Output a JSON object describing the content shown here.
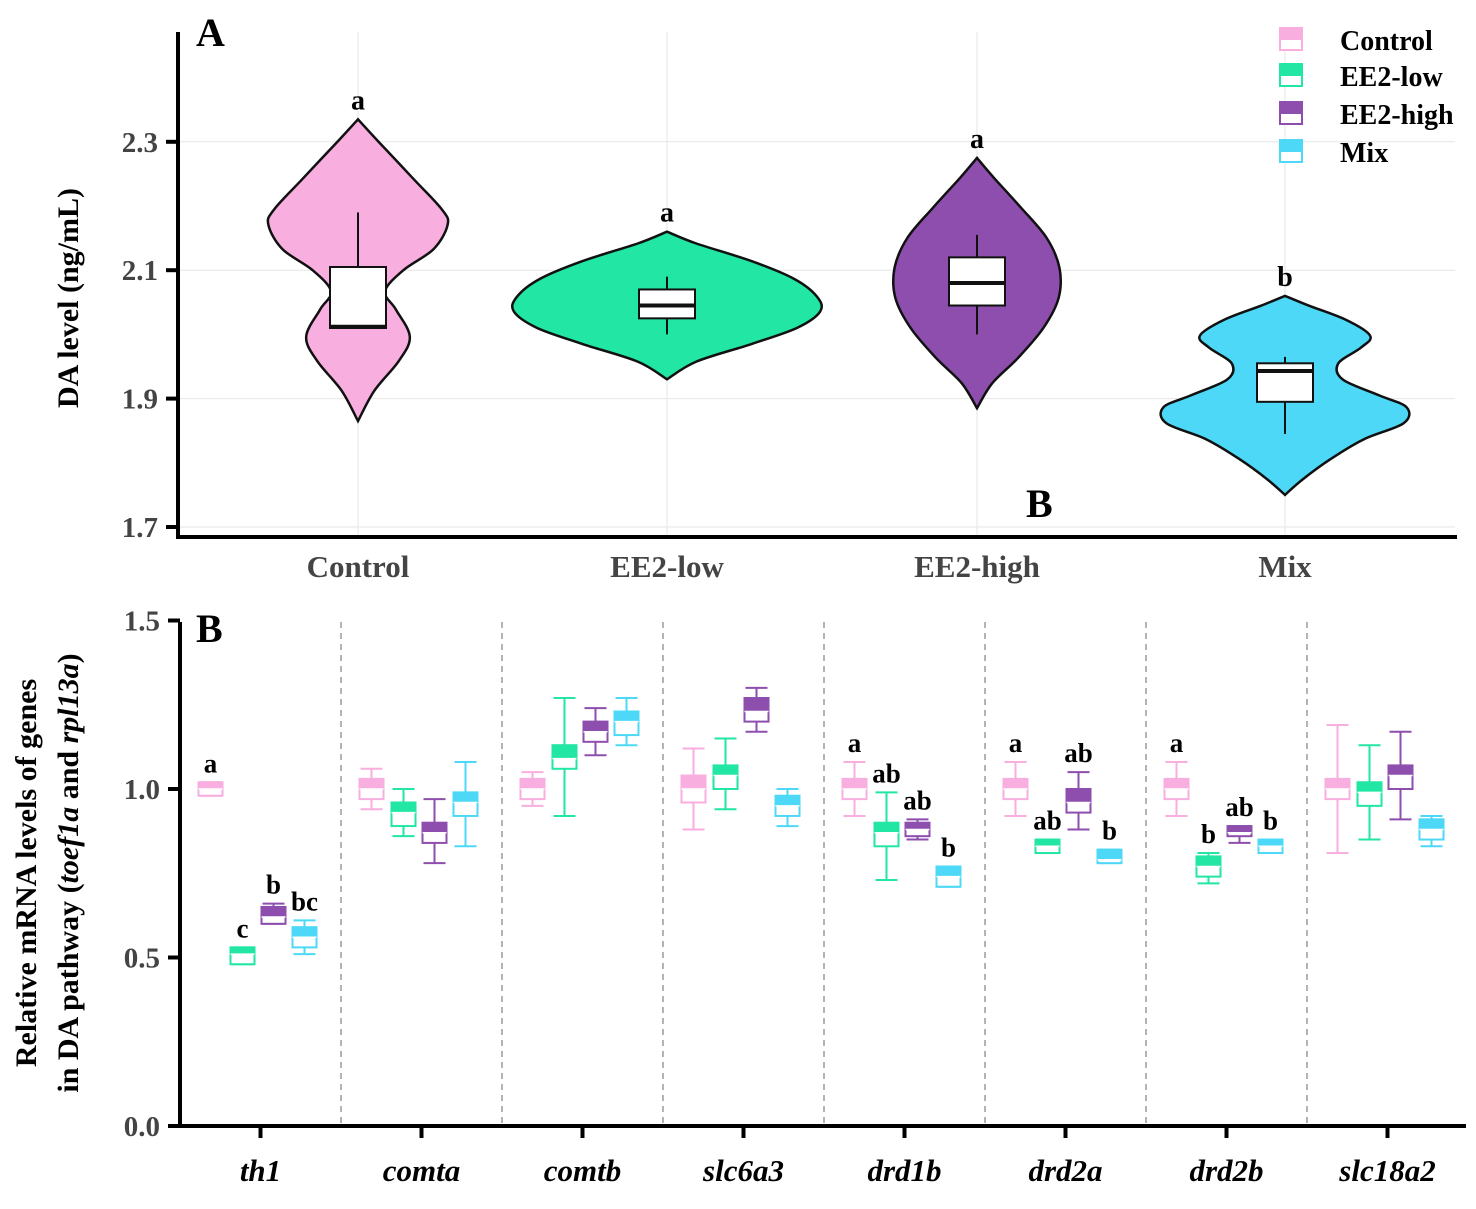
{
  "chart_data": [
    {
      "type": "violin",
      "panel_label": "A",
      "ylabel": "DA level (ng/mL)",
      "xlabel": "",
      "ylim": [
        1.69,
        2.49
      ],
      "yticks": [
        "1.7",
        "1.9",
        "2.1",
        "2.3"
      ],
      "categories": [
        "Control",
        "EE2-low",
        "EE2-high",
        "Mix"
      ],
      "violin_range": [
        [
          1.865,
          2.335
        ],
        [
          1.93,
          2.16
        ],
        [
          1.885,
          2.275
        ],
        [
          1.75,
          2.06
        ]
      ],
      "box": [
        {
          "whisker_low": 2.01,
          "q1": 2.01,
          "median": 2.012,
          "q3": 2.105,
          "whisker_high": 2.19
        },
        {
          "whisker_low": 2.0,
          "q1": 2.025,
          "median": 2.045,
          "q3": 2.07,
          "whisker_high": 2.09
        },
        {
          "whisker_low": 2.0,
          "q1": 2.045,
          "median": 2.08,
          "q3": 2.12,
          "whisker_high": 2.155
        },
        {
          "whisker_low": 1.845,
          "q1": 1.895,
          "median": 1.943,
          "q3": 1.955,
          "whisker_high": 1.965
        }
      ],
      "significance": [
        "a",
        "a",
        "a",
        "b"
      ],
      "stray_label": "B",
      "grid": true
    },
    {
      "type": "box",
      "panel_label": "B",
      "ylabel": "Relative mRNA levels of genes",
      "ylabel2_prefix": "in DA pathway (",
      "ylabel2_gene1": "toef1a",
      "ylabel2_and": " and ",
      "ylabel2_gene2": "rpl13a",
      "ylabel2_suffix": ")",
      "ylim": [
        0.0,
        1.5
      ],
      "yticks": [
        "0.0",
        "0.5",
        "1.0",
        "1.5"
      ],
      "categories": [
        "th1",
        "comta",
        "comtb",
        "slc6a3",
        "drd1b",
        "drd2a",
        "drd2b",
        "slc18a2"
      ],
      "series": [
        {
          "name": "Control",
          "stats": [
            [
              0.98,
              0.98,
              1.0,
              1.02,
              1.02
            ],
            [
              0.94,
              0.97,
              1.0,
              1.03,
              1.06
            ],
            [
              0.95,
              0.97,
              1.0,
              1.03,
              1.05
            ],
            [
              0.88,
              0.96,
              1.0,
              1.04,
              1.12
            ],
            [
              0.92,
              0.97,
              1.0,
              1.03,
              1.08
            ],
            [
              0.92,
              0.97,
              1.0,
              1.03,
              1.08
            ],
            [
              0.92,
              0.97,
              1.0,
              1.03,
              1.08
            ],
            [
              0.81,
              0.97,
              1.0,
              1.03,
              1.19
            ]
          ]
        },
        {
          "name": "EE2-low",
          "stats": [
            [
              0.48,
              0.48,
              0.51,
              0.53,
              0.53
            ],
            [
              0.86,
              0.89,
              0.93,
              0.96,
              1.0
            ],
            [
              0.92,
              1.06,
              1.09,
              1.13,
              1.27
            ],
            [
              0.94,
              1.0,
              1.04,
              1.07,
              1.15
            ],
            [
              0.73,
              0.83,
              0.87,
              0.9,
              0.99
            ],
            [
              0.81,
              0.81,
              0.83,
              0.85,
              0.85
            ],
            [
              0.72,
              0.74,
              0.77,
              0.8,
              0.81
            ],
            [
              0.85,
              0.95,
              0.99,
              1.02,
              1.13
            ]
          ]
        },
        {
          "name": "EE2-high",
          "stats": [
            [
              0.6,
              0.6,
              0.62,
              0.65,
              0.66
            ],
            [
              0.78,
              0.84,
              0.87,
              0.9,
              0.97
            ],
            [
              1.1,
              1.14,
              1.17,
              1.2,
              1.24
            ],
            [
              1.17,
              1.2,
              1.23,
              1.27,
              1.3
            ],
            [
              0.85,
              0.86,
              0.88,
              0.9,
              0.91
            ],
            [
              0.88,
              0.93,
              0.96,
              1.0,
              1.05
            ],
            [
              0.84,
              0.86,
              0.87,
              0.89,
              0.89
            ],
            [
              0.91,
              1.0,
              1.04,
              1.07,
              1.17
            ]
          ]
        },
        {
          "name": "Mix",
          "stats": [
            [
              0.51,
              0.53,
              0.56,
              0.59,
              0.61
            ],
            [
              0.83,
              0.92,
              0.96,
              0.99,
              1.08
            ],
            [
              1.13,
              1.16,
              1.2,
              1.23,
              1.27
            ],
            [
              0.89,
              0.92,
              0.95,
              0.98,
              1.0
            ],
            [
              0.71,
              0.71,
              0.74,
              0.77,
              0.77
            ],
            [
              0.78,
              0.78,
              0.79,
              0.82,
              0.82
            ],
            [
              0.81,
              0.81,
              0.83,
              0.85,
              0.85
            ],
            [
              0.83,
              0.85,
              0.88,
              0.91,
              0.92
            ]
          ]
        }
      ],
      "significance": [
        [
          "a",
          "c",
          "b",
          "bc"
        ],
        [
          "",
          "",
          "",
          ""
        ],
        [
          "",
          "",
          "",
          ""
        ],
        [
          "",
          "",
          "",
          ""
        ],
        [
          "a",
          "ab",
          "ab",
          "b"
        ],
        [
          "a",
          "ab",
          "ab",
          "b"
        ],
        [
          "a",
          "b",
          "ab",
          "b"
        ],
        [
          "",
          "",
          "",
          ""
        ]
      ],
      "separators": "dashed",
      "grid": false
    }
  ],
  "legend": {
    "position": "top-right",
    "items": [
      "Control",
      "EE2-low",
      "EE2-high",
      "Mix"
    ]
  },
  "colors": {
    "Control": "#f9aee0",
    "EE2-low": "#22e6a3",
    "EE2-high": "#8e4eae",
    "Mix": "#4dd8f7"
  }
}
